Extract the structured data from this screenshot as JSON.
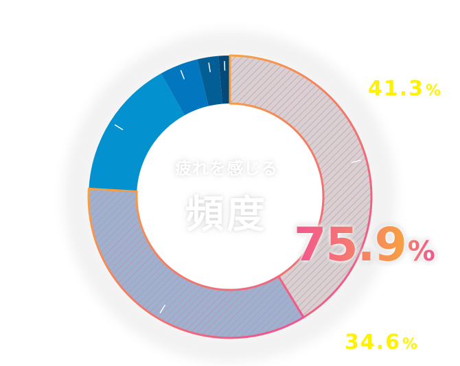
{
  "chart_data": {
    "type": "pie",
    "variant": "donut",
    "center_label": {
      "subtitle": "疲れを感じる",
      "title": "頻度"
    },
    "highlight": {
      "value": "75.9",
      "unit": "%"
    },
    "slices": [
      {
        "value": 41.3,
        "color": "#d8d0d2",
        "hatched": true,
        "outline": true
      },
      {
        "value": 34.6,
        "color": "#9fb1d0",
        "hatched": true,
        "outline": true
      },
      {
        "value": 16.0,
        "color": "#0491cf",
        "hatched": false,
        "outline": false
      },
      {
        "value": 4.4,
        "color": "#0277bf",
        "hatched": false,
        "outline": false
      },
      {
        "value": 2.4,
        "color": "#025e95",
        "hatched": false,
        "outline": false
      },
      {
        "value": 1.3,
        "color": "#044a78",
        "hatched": false,
        "outline": false
      }
    ],
    "labels": [
      {
        "value": "41.3",
        "unit": "%"
      },
      {
        "value": "34.6",
        "unit": "%"
      }
    ],
    "colors": {
      "label": "#fff200",
      "outline_start": "#f7a23f",
      "outline_end": "#ef4f94"
    }
  }
}
